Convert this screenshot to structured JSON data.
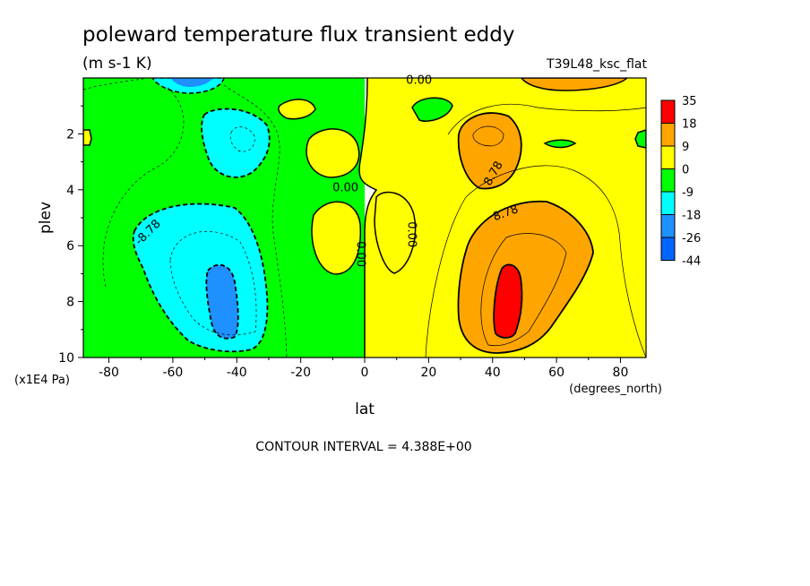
{
  "chart_data": {
    "type": "contour",
    "title": "poleward temperature flux transient eddy",
    "units": "(m s-1 K)",
    "run_label": "T39L48_ksc_flat",
    "xlabel": "lat",
    "x_unit_label": "(degrees_north)",
    "ylabel": "plev",
    "y_unit_label": "(x1E4 Pa)",
    "xlim": [
      -88,
      88
    ],
    "ylim": [
      10,
      0
    ],
    "x_ticks": [
      "-80",
      "-60",
      "-40",
      "-20",
      "0",
      "20",
      "40",
      "60",
      "80"
    ],
    "x_tick_values": [
      -80,
      -60,
      -40,
      -20,
      0,
      20,
      40,
      60,
      80
    ],
    "y_ticks": [
      "2",
      "4",
      "6",
      "8",
      "10"
    ],
    "y_tick_values": [
      2,
      4,
      6,
      8,
      10
    ],
    "contour_interval_text": "CONTOUR INTERVAL = 4.388E+00",
    "contour_labels": [
      {
        "text": "0.00",
        "lat": 17,
        "plev": 0.05
      },
      {
        "text": "0.00",
        "lat": -6,
        "plev": 3.9
      },
      {
        "text": "0.00",
        "lat": -1,
        "plev": 6.3
      },
      {
        "text": "0.00",
        "lat": 15,
        "plev": 5.6
      },
      {
        "text": "-8.78",
        "lat": -68,
        "plev": 5.5
      },
      {
        "text": "8.78",
        "lat": 40,
        "plev": 3.4
      },
      {
        "text": "8.78",
        "lat": 44,
        "plev": 4.8
      }
    ],
    "legend": {
      "levels": [
        "35",
        "18",
        "9",
        "0",
        "-9",
        "-18",
        "-26",
        "-44"
      ],
      "colors": [
        "#ff0000",
        "#ffa500",
        "#ffff00",
        "#00ff00",
        "#00ffff",
        "#1e90ff",
        "#0066ff"
      ]
    },
    "background_level_colors": {
      "negative": "#00ff00",
      "positive": "#ffff00"
    },
    "features": [
      {
        "name": "southern-minimum",
        "lat": -44,
        "plev": 8.0,
        "value": -26
      },
      {
        "name": "northern-maximum",
        "lat": 45,
        "plev": 8.2,
        "value": 35
      }
    ]
  }
}
